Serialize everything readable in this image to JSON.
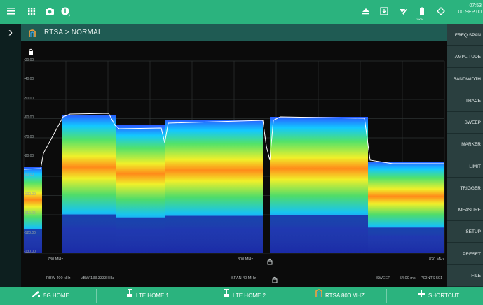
{
  "status_bar": {
    "time": "07:53",
    "date": "00 SEP 00",
    "badge": "2",
    "battery_label": "100%"
  },
  "breadcrumb": {
    "text": "RTSA  >  NORMAL"
  },
  "right_menu": [
    "FREQ SPAN",
    "AMPLITUDE",
    "BANDWIDTH",
    "TRACE",
    "SWEEP",
    "MARKER",
    "LIMIT",
    "TRIGGER",
    "MEASURE",
    "SETUP",
    "PRESET",
    "FILE"
  ],
  "plot": {
    "y_ticks": [
      "-30.00",
      "-40.00",
      "-50.00",
      "-60.00",
      "-70.00",
      "-80.00",
      "-90.00",
      "-100.00",
      "-110.00",
      "-120.00",
      "-130.00"
    ],
    "x_start": "780 MHz",
    "x_center": "800 MHz",
    "x_end": "820 MHz",
    "rbw": "RBW 400 kHz",
    "vbw": "VBW 133.3333 kHz",
    "span": "SPAN 40 MHz",
    "sweep": "SWEEP",
    "sweep_time": "54.00 ms",
    "points": "POINTS 501"
  },
  "shortcuts": [
    {
      "label": "5G HOME"
    },
    {
      "label": "LTE HOME 1"
    },
    {
      "label": "LTE HOME 2"
    },
    {
      "label": "RTSA 800 MHZ"
    },
    {
      "label": "SHORTCUT"
    }
  ],
  "colors": {
    "accent": "#2bb37e",
    "breadcrumb_bg": "#1f5b53",
    "menu_bg": "#2a3f3f"
  }
}
